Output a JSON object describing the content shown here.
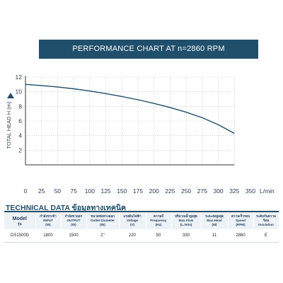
{
  "banner": {
    "title": "PERFORMANCE CHART AT  n=2860 RPM"
  },
  "chart_data": {
    "type": "line",
    "title": "PERFORMANCE CHART AT  n=2860 RPM",
    "xlabel": "L/min",
    "ylabel": "TOTAL HEAD H (m)",
    "xlim": [
      0,
      350
    ],
    "ylim": [
      0,
      12
    ],
    "x_ticks": [
      0,
      25,
      50,
      75,
      100,
      125,
      150,
      175,
      200,
      225,
      250,
      275,
      300,
      325,
      350
    ],
    "y_ticks": [
      0,
      2,
      4,
      6,
      8,
      10,
      12
    ],
    "grid": true,
    "series": [
      {
        "color": "#1f4f6a",
        "x": [
          0,
          25,
          50,
          75,
          100,
          125,
          150,
          175,
          200,
          225,
          250,
          275,
          300,
          325
        ],
        "y": [
          11.0,
          10.85,
          10.65,
          10.4,
          10.1,
          9.75,
          9.35,
          8.9,
          8.4,
          7.85,
          7.2,
          6.45,
          5.5,
          4.3
        ]
      }
    ]
  },
  "tech_data": {
    "title": "TECHNICAL DATA ข้อมูลทางเทคนิค",
    "headers": [
      [
        "Model",
        "รุ่น"
      ],
      [
        "กำลังขาเข้า",
        "INPUT",
        "(W)"
      ],
      [
        "กำลังขาออก",
        "OUTPUT",
        "(W)"
      ],
      [
        "ขนาดท่อทางออก",
        "Outlet Diameter",
        "(IN)"
      ],
      [
        "แรงดันไฟฟ้า",
        "Voltage",
        "(V)"
      ],
      [
        "ความถี่",
        "Frequency",
        "(Hz)"
      ],
      [
        "ปริมาณน้ำสูงสุด",
        "Max.Flow",
        "(L./min)"
      ],
      [
        "ระยะส่งสูงสุด",
        "Max.Head",
        "(M)"
      ],
      [
        "ความเร็วรอบ",
        "Speed",
        "(RPM)"
      ],
      [
        "ระดับกันความร้อน",
        "Insulation"
      ]
    ],
    "rows": [
      [
        "DS1500D",
        "1800",
        "1500",
        "2\"",
        "220",
        "50",
        "330",
        "11",
        "2860",
        "E"
      ]
    ]
  }
}
